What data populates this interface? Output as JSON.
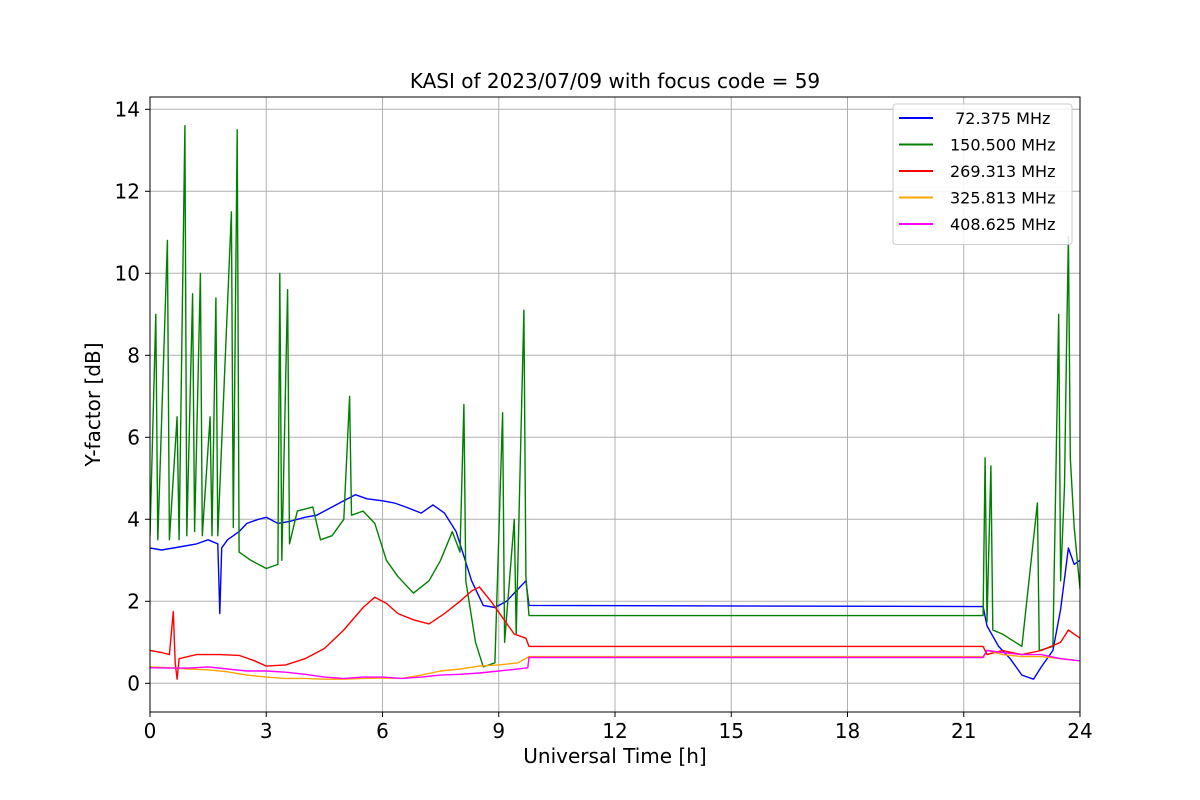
{
  "chart_data": {
    "type": "line",
    "title": "KASI of 2023/07/09 with focus code = 59",
    "xlabel": "Universal Time [h]",
    "ylabel": "Y-factor [dB]",
    "xlim": [
      0,
      24
    ],
    "ylim": [
      -0.7,
      14.3
    ],
    "xticks": [
      0,
      3,
      6,
      9,
      12,
      15,
      18,
      21,
      24
    ],
    "yticks": [
      0,
      2,
      4,
      6,
      8,
      10,
      12,
      14
    ],
    "grid": true,
    "legend_position": "top-right",
    "series": [
      {
        "name": " 72.375 MHz",
        "color": "#0000ff",
        "points": [
          [
            0,
            3.3
          ],
          [
            0.3,
            3.25
          ],
          [
            0.6,
            3.3
          ],
          [
            0.9,
            3.35
          ],
          [
            1.2,
            3.4
          ],
          [
            1.5,
            3.5
          ],
          [
            1.75,
            3.4
          ],
          [
            1.8,
            1.7
          ],
          [
            1.85,
            3.3
          ],
          [
            2.0,
            3.5
          ],
          [
            2.3,
            3.7
          ],
          [
            2.5,
            3.9
          ],
          [
            2.8,
            4.0
          ],
          [
            3.0,
            4.05
          ],
          [
            3.3,
            3.9
          ],
          [
            3.6,
            3.95
          ],
          [
            4.0,
            4.05
          ],
          [
            4.3,
            4.1
          ],
          [
            4.6,
            4.25
          ],
          [
            5.0,
            4.45
          ],
          [
            5.3,
            4.6
          ],
          [
            5.6,
            4.5
          ],
          [
            6.0,
            4.45
          ],
          [
            6.3,
            4.4
          ],
          [
            6.6,
            4.3
          ],
          [
            7.0,
            4.15
          ],
          [
            7.3,
            4.35
          ],
          [
            7.6,
            4.15
          ],
          [
            7.9,
            3.7
          ],
          [
            8.1,
            3.1
          ],
          [
            8.3,
            2.5
          ],
          [
            8.6,
            1.9
          ],
          [
            8.9,
            1.85
          ],
          [
            9.2,
            2.0
          ],
          [
            9.5,
            2.3
          ],
          [
            9.7,
            2.5
          ],
          [
            9.78,
            1.9
          ],
          [
            21.5,
            1.87
          ],
          [
            21.6,
            1.4
          ],
          [
            21.9,
            0.9
          ],
          [
            22.2,
            0.6
          ],
          [
            22.5,
            0.2
          ],
          [
            22.8,
            0.1
          ],
          [
            23.0,
            0.4
          ],
          [
            23.3,
            0.8
          ],
          [
            23.5,
            1.8
          ],
          [
            23.7,
            3.3
          ],
          [
            23.85,
            2.9
          ],
          [
            24,
            3.0
          ]
        ]
      },
      {
        "name": "150.500 MHz",
        "color": "#008000",
        "points": [
          [
            0,
            3.6
          ],
          [
            0.15,
            9.0
          ],
          [
            0.2,
            3.5
          ],
          [
            0.45,
            10.8
          ],
          [
            0.5,
            3.5
          ],
          [
            0.7,
            6.5
          ],
          [
            0.75,
            3.5
          ],
          [
            0.9,
            13.6
          ],
          [
            0.95,
            3.6
          ],
          [
            1.1,
            9.5
          ],
          [
            1.15,
            3.7
          ],
          [
            1.3,
            10.0
          ],
          [
            1.35,
            3.6
          ],
          [
            1.55,
            6.5
          ],
          [
            1.6,
            3.6
          ],
          [
            1.7,
            9.4
          ],
          [
            1.75,
            3.6
          ],
          [
            2.1,
            11.5
          ],
          [
            2.15,
            3.8
          ],
          [
            2.25,
            13.5
          ],
          [
            2.3,
            3.2
          ],
          [
            2.6,
            3.0
          ],
          [
            3.0,
            2.8
          ],
          [
            3.3,
            2.9
          ],
          [
            3.35,
            10.0
          ],
          [
            3.4,
            3.0
          ],
          [
            3.55,
            9.6
          ],
          [
            3.6,
            3.4
          ],
          [
            3.8,
            4.2
          ],
          [
            4.2,
            4.3
          ],
          [
            4.4,
            3.5
          ],
          [
            4.7,
            3.6
          ],
          [
            5.0,
            4.0
          ],
          [
            5.15,
            7.0
          ],
          [
            5.2,
            4.1
          ],
          [
            5.5,
            4.2
          ],
          [
            5.8,
            3.9
          ],
          [
            6.1,
            3.0
          ],
          [
            6.4,
            2.6
          ],
          [
            6.8,
            2.2
          ],
          [
            7.2,
            2.5
          ],
          [
            7.5,
            3.0
          ],
          [
            7.8,
            3.7
          ],
          [
            8.0,
            3.2
          ],
          [
            8.1,
            6.8
          ],
          [
            8.15,
            2.5
          ],
          [
            8.4,
            1.0
          ],
          [
            8.6,
            0.4
          ],
          [
            8.9,
            0.5
          ],
          [
            9.1,
            6.6
          ],
          [
            9.15,
            1.0
          ],
          [
            9.4,
            4.0
          ],
          [
            9.45,
            1.2
          ],
          [
            9.65,
            9.1
          ],
          [
            9.7,
            2.6
          ],
          [
            9.78,
            1.65
          ],
          [
            21.5,
            1.65
          ],
          [
            21.55,
            5.5
          ],
          [
            21.6,
            1.5
          ],
          [
            21.7,
            5.3
          ],
          [
            21.75,
            1.3
          ],
          [
            22.0,
            1.2
          ],
          [
            22.5,
            0.9
          ],
          [
            22.9,
            4.4
          ],
          [
            22.95,
            0.8
          ],
          [
            23.3,
            0.9
          ],
          [
            23.45,
            9.0
          ],
          [
            23.5,
            2.5
          ],
          [
            23.6,
            4.8
          ],
          [
            23.65,
            8.0
          ],
          [
            23.7,
            10.9
          ],
          [
            23.75,
            5.5
          ],
          [
            23.85,
            3.8
          ],
          [
            24,
            2.3
          ]
        ]
      },
      {
        "name": "269.313 MHz",
        "color": "#ff0000",
        "points": [
          [
            0,
            0.8
          ],
          [
            0.3,
            0.75
          ],
          [
            0.5,
            0.7
          ],
          [
            0.6,
            1.75
          ],
          [
            0.65,
            0.5
          ],
          [
            0.7,
            0.1
          ],
          [
            0.75,
            0.6
          ],
          [
            1.2,
            0.7
          ],
          [
            1.8,
            0.7
          ],
          [
            2.3,
            0.68
          ],
          [
            2.7,
            0.55
          ],
          [
            3.0,
            0.42
          ],
          [
            3.5,
            0.45
          ],
          [
            4.0,
            0.6
          ],
          [
            4.5,
            0.85
          ],
          [
            5.0,
            1.3
          ],
          [
            5.5,
            1.85
          ],
          [
            5.8,
            2.1
          ],
          [
            6.1,
            1.95
          ],
          [
            6.4,
            1.7
          ],
          [
            6.8,
            1.55
          ],
          [
            7.2,
            1.45
          ],
          [
            7.6,
            1.7
          ],
          [
            8.0,
            2.0
          ],
          [
            8.3,
            2.25
          ],
          [
            8.5,
            2.35
          ],
          [
            8.8,
            2.0
          ],
          [
            9.1,
            1.6
          ],
          [
            9.4,
            1.2
          ],
          [
            9.7,
            1.1
          ],
          [
            9.78,
            0.9
          ],
          [
            21.5,
            0.9
          ],
          [
            21.6,
            0.7
          ],
          [
            22.0,
            0.8
          ],
          [
            22.5,
            0.7
          ],
          [
            23.0,
            0.8
          ],
          [
            23.5,
            1.0
          ],
          [
            23.7,
            1.3
          ],
          [
            24,
            1.1
          ]
        ]
      },
      {
        "name": "325.813 MHz",
        "color": "#ffa500",
        "points": [
          [
            0,
            0.4
          ],
          [
            0.5,
            0.38
          ],
          [
            1.0,
            0.35
          ],
          [
            1.5,
            0.33
          ],
          [
            2.0,
            0.28
          ],
          [
            2.5,
            0.2
          ],
          [
            3.0,
            0.15
          ],
          [
            3.5,
            0.12
          ],
          [
            4.0,
            0.12
          ],
          [
            4.5,
            0.1
          ],
          [
            5.0,
            0.1
          ],
          [
            5.5,
            0.12
          ],
          [
            6.0,
            0.13
          ],
          [
            6.5,
            0.12
          ],
          [
            7.0,
            0.2
          ],
          [
            7.5,
            0.3
          ],
          [
            8.0,
            0.35
          ],
          [
            8.5,
            0.42
          ],
          [
            9.0,
            0.45
          ],
          [
            9.5,
            0.5
          ],
          [
            9.78,
            0.65
          ],
          [
            21.5,
            0.65
          ],
          [
            21.6,
            0.8
          ],
          [
            22.0,
            0.7
          ],
          [
            22.5,
            0.65
          ],
          [
            23.0,
            0.65
          ],
          [
            23.5,
            0.6
          ],
          [
            24,
            0.55
          ]
        ]
      },
      {
        "name": "408.625 MHz",
        "color": "#ff00ff",
        "points": [
          [
            0,
            0.38
          ],
          [
            0.5,
            0.37
          ],
          [
            1.0,
            0.37
          ],
          [
            1.5,
            0.4
          ],
          [
            2.0,
            0.35
          ],
          [
            2.5,
            0.3
          ],
          [
            3.0,
            0.3
          ],
          [
            3.5,
            0.27
          ],
          [
            4.0,
            0.22
          ],
          [
            4.5,
            0.15
          ],
          [
            5.0,
            0.12
          ],
          [
            5.5,
            0.15
          ],
          [
            6.0,
            0.15
          ],
          [
            6.5,
            0.12
          ],
          [
            7.0,
            0.15
          ],
          [
            7.5,
            0.2
          ],
          [
            8.0,
            0.22
          ],
          [
            8.5,
            0.25
          ],
          [
            9.0,
            0.3
          ],
          [
            9.5,
            0.35
          ],
          [
            9.75,
            0.38
          ],
          [
            9.78,
            0.63
          ],
          [
            21.5,
            0.63
          ],
          [
            21.6,
            0.8
          ],
          [
            22.0,
            0.75
          ],
          [
            22.5,
            0.7
          ],
          [
            23.0,
            0.7
          ],
          [
            23.5,
            0.6
          ],
          [
            24,
            0.55
          ]
        ]
      }
    ]
  }
}
